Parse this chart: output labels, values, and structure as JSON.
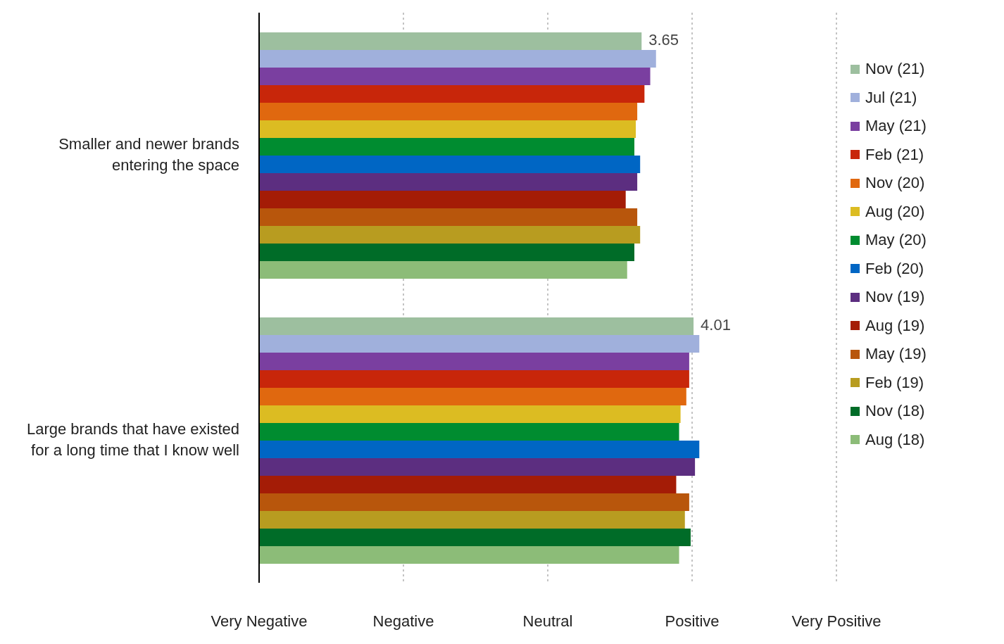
{
  "chart_data": {
    "type": "bar",
    "orientation": "horizontal",
    "categories": [
      "Smaller and newer brands entering the space",
      "Large brands that have existed for a long time that I know well"
    ],
    "series": [
      {
        "name": "Nov (21)",
        "color": "#9dbf9f",
        "values": [
          3.65,
          4.01
        ],
        "value_labels": [
          "3.65",
          "4.01"
        ]
      },
      {
        "name": "Jul (21)",
        "color": "#a0b0dc",
        "values": [
          3.75,
          4.05
        ]
      },
      {
        "name": "May (21)",
        "color": "#7a3fa0",
        "values": [
          3.71,
          3.98
        ]
      },
      {
        "name": "Feb (21)",
        "color": "#c8260a",
        "values": [
          3.67,
          3.98
        ]
      },
      {
        "name": "Nov (20)",
        "color": "#e0680f",
        "values": [
          3.62,
          3.96
        ]
      },
      {
        "name": "Aug (20)",
        "color": "#dcbc22",
        "values": [
          3.61,
          3.92
        ]
      },
      {
        "name": "May (20)",
        "color": "#008c30",
        "values": [
          3.6,
          3.91
        ]
      },
      {
        "name": "Feb (20)",
        "color": "#0066c4",
        "values": [
          3.64,
          4.05
        ]
      },
      {
        "name": "Nov (19)",
        "color": "#5c2e80",
        "values": [
          3.62,
          4.02
        ]
      },
      {
        "name": "Aug (19)",
        "color": "#a41c06",
        "values": [
          3.54,
          3.89
        ]
      },
      {
        "name": "May (19)",
        "color": "#b8560c",
        "values": [
          3.62,
          3.98
        ]
      },
      {
        "name": "Feb (19)",
        "color": "#b89c20",
        "values": [
          3.64,
          3.95
        ]
      },
      {
        "name": "Nov (18)",
        "color": "#006c28",
        "values": [
          3.6,
          3.99
        ]
      },
      {
        "name": "Aug (18)",
        "color": "#8cbc78",
        "values": [
          3.55,
          3.91
        ]
      }
    ],
    "xlim": [
      1,
      5
    ],
    "xticks": [
      {
        "value": 1,
        "label": null
      },
      {
        "value": 2,
        "label": null
      },
      {
        "value": 3,
        "label": null
      },
      {
        "value": 4,
        "label": null
      },
      {
        "value": 5,
        "label": null
      }
    ],
    "annotations": [
      "Very Negative",
      "Negative",
      "Neutral",
      "Positive",
      "Very Positive"
    ],
    "grid": "x",
    "legend": "top right"
  }
}
